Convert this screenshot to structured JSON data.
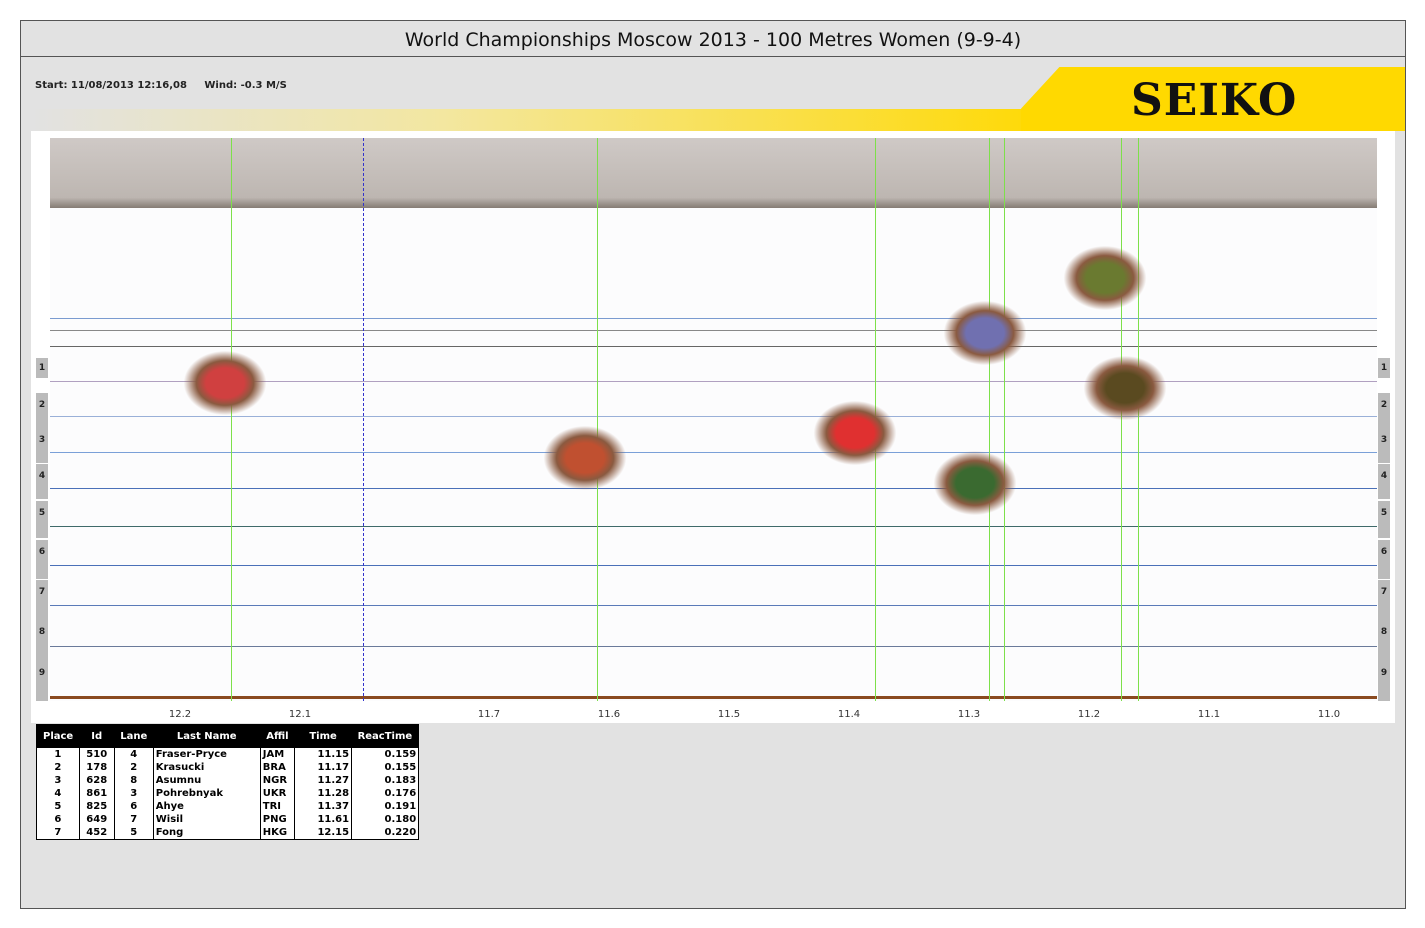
{
  "title": "World Championships Moscow 2013 - 100 Metres Women (9-9-4)",
  "start": "Start: 11/08/2013 12:16,08",
  "wind": "Wind: -0.3 M/S",
  "brand": "SEIKO",
  "colors": {
    "brand_yellow": "#ffd900",
    "finish_line": "#7de04a",
    "cursor_line": "#3333cc"
  },
  "lanes": [
    "1",
    "2",
    "3",
    "4",
    "5",
    "6",
    "7",
    "8",
    "9"
  ],
  "time_ticks": [
    "12.2",
    "12.1",
    "11.7",
    "11.6",
    "11.5",
    "11.4",
    "11.3",
    "11.2",
    "11.1",
    "11.0"
  ],
  "results": {
    "headers": [
      "Place",
      "Id",
      "Lane",
      "Last Name",
      "Affil",
      "Time",
      "ReacTime"
    ],
    "rows": [
      [
        "1",
        "510",
        "4",
        "Fraser-Pryce",
        "JAM",
        "11.15",
        "0.159"
      ],
      [
        "2",
        "178",
        "2",
        "Krasucki",
        "BRA",
        "11.17",
        "0.155"
      ],
      [
        "3",
        "628",
        "8",
        "Asumnu",
        "NGR",
        "11.27",
        "0.183"
      ],
      [
        "4",
        "861",
        "3",
        "Pohrebnyak",
        "UKR",
        "11.28",
        "0.176"
      ],
      [
        "5",
        "825",
        "6",
        "Ahye",
        "TRI",
        "11.37",
        "0.191"
      ],
      [
        "6",
        "649",
        "7",
        "Wisil",
        "PNG",
        "11.61",
        "0.180"
      ],
      [
        "7",
        "452",
        "5",
        "Fong",
        "HKG",
        "12.15",
        "0.220"
      ]
    ]
  }
}
